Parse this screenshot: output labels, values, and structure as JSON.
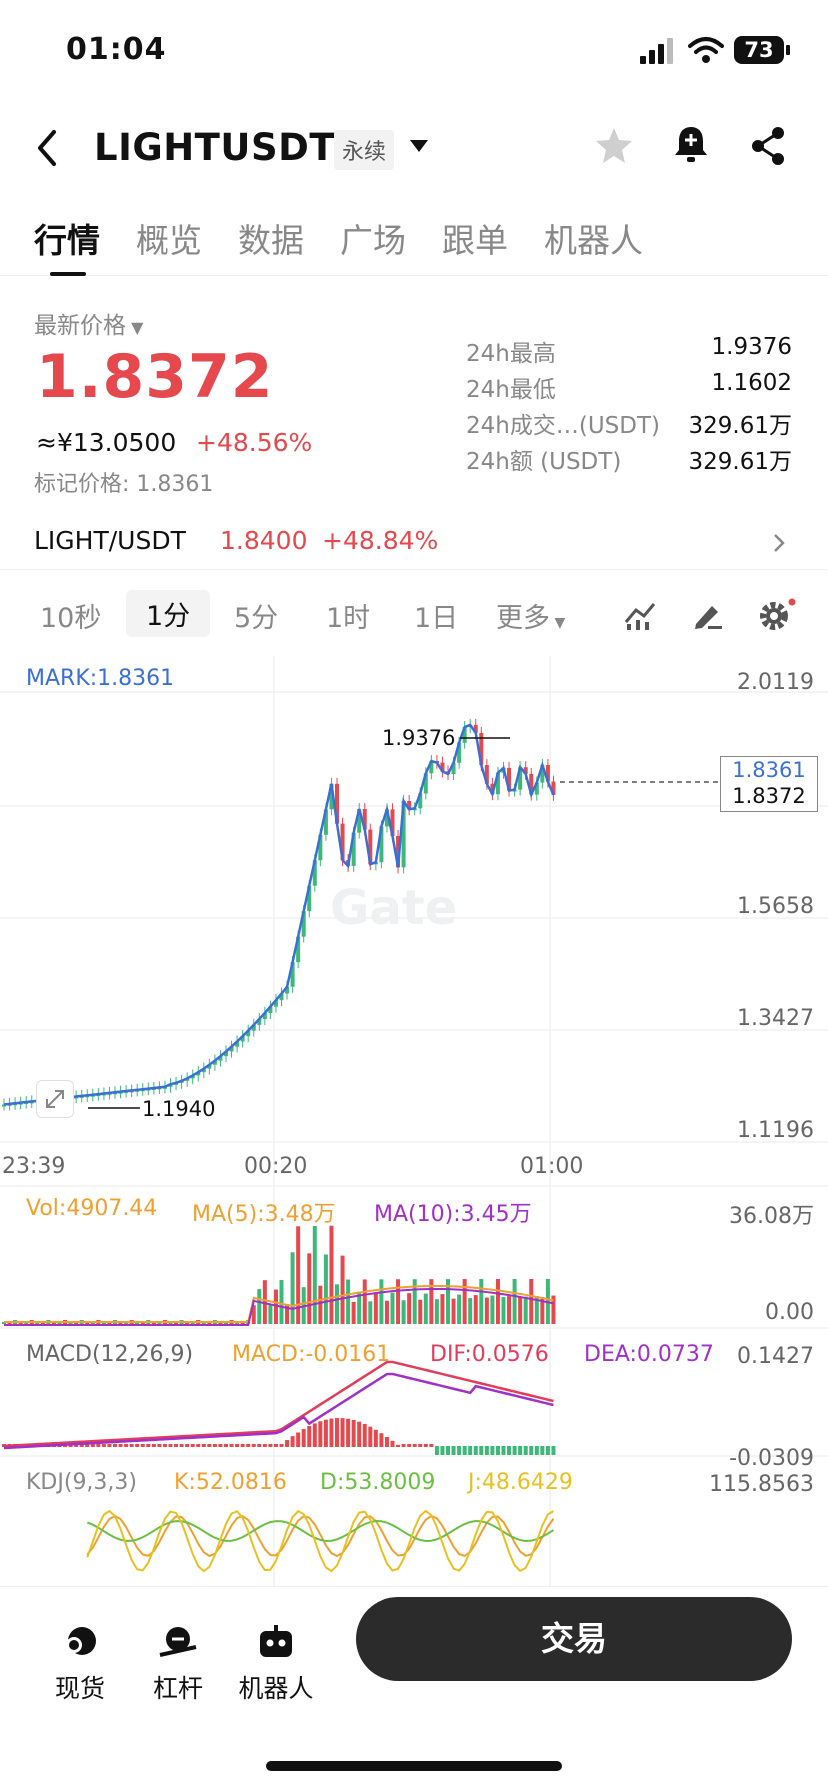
{
  "status": {
    "time": "01:04",
    "battery": "73"
  },
  "header": {
    "title": "LIGHTUSDT",
    "badge": "永续"
  },
  "tabs": [
    "行情",
    "概览",
    "数据",
    "广场",
    "跟单",
    "机器人"
  ],
  "price": {
    "label": "最新价格",
    "last": "1.8372",
    "cny": "≈¥13.0500",
    "change": "+48.56%",
    "mark_label": "标记价格: 1.8361"
  },
  "stats": [
    {
      "k": "24h最高",
      "v": "1.9376"
    },
    {
      "k": "24h最低",
      "v": "1.1602"
    },
    {
      "k": "24h成交…(USDT)",
      "v": "329.61万"
    },
    {
      "k": "24h额 (USDT)",
      "v": "329.61万"
    }
  ],
  "spot": {
    "pair": "LIGHT/USDT",
    "price": "1.8400",
    "change": "+48.84%"
  },
  "intervals": [
    "10秒",
    "1分",
    "5分",
    "1时",
    "1日",
    "更多"
  ],
  "chart": {
    "mark_label": "MARK:1.8361",
    "y_ticks": [
      "2.0119",
      "1.5658",
      "1.3427",
      "1.1196"
    ],
    "x_ticks": [
      "23:39",
      "00:20",
      "01:00"
    ],
    "high_label": "1.9376",
    "low_label": "1.1940",
    "mark_tag": "1.8361",
    "last_tag": "1.8372",
    "watermark": "Gate"
  },
  "vol": {
    "vol": "Vol:4907.44",
    "ma5": "MA(5):3.48万",
    "ma10": "MA(10):3.45万",
    "max": "36.08万",
    "min": "0.00"
  },
  "macd": {
    "title": "MACD(12,26,9)",
    "macd": "MACD:-0.0161",
    "dif": "DIF:0.0576",
    "dea": "DEA:0.0737",
    "max": "0.1427",
    "min": "-0.0309"
  },
  "kdj": {
    "title": "KDJ(9,3,3)",
    "k": "K:52.0816",
    "d": "D:53.8009",
    "j": "J:48.6429",
    "max": "115.8563"
  },
  "bottom": {
    "spot": "现货",
    "margin": "杠杆",
    "bot": "机器人",
    "trade": "交易"
  },
  "chart_data": {
    "type": "candlestick",
    "x": [
      "23:39",
      "00:20",
      "01:00"
    ],
    "ylim": [
      1.1196,
      2.0119
    ],
    "high": 1.9376,
    "low": 1.194,
    "last": 1.8372,
    "mark": 1.8361
  }
}
